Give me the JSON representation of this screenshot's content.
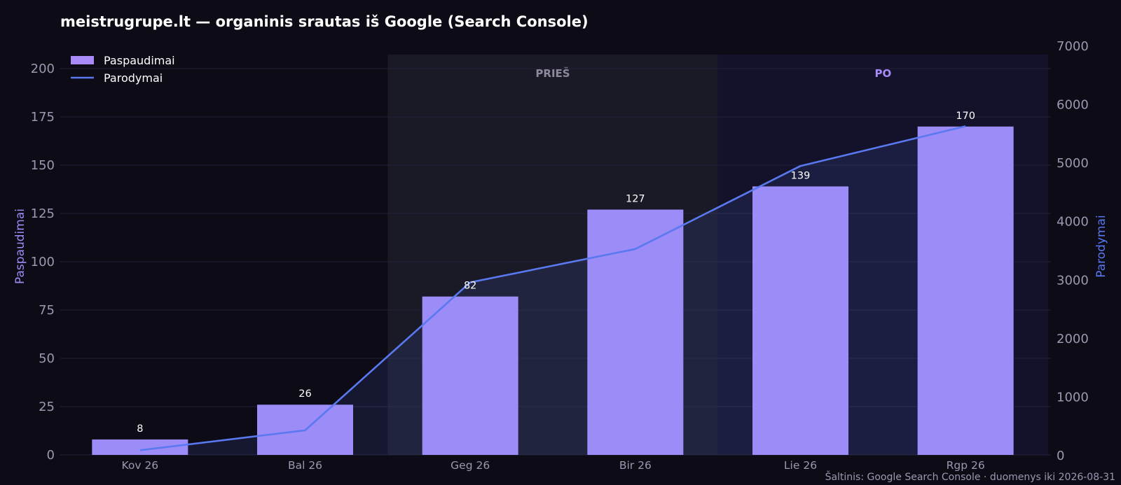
{
  "colors": {
    "background": "#0c0b16",
    "bars": "#9b8cf8",
    "bars_highlight": "#a98af9",
    "line": "#5a78f0",
    "grid": "#24233a",
    "before_region": "#1a1926",
    "after_region": "#14122a",
    "left_axis_label": "#a08af6",
    "right_axis_label": "#5a78f0",
    "region_before_label": "#8d8a9e",
    "region_after_label": "#a98af9"
  },
  "chart_data": {
    "type": "bar",
    "title": "meistrugrupe.lt — organinis srautas iš Google (Search Console)",
    "categories": [
      "Kov 26",
      "Bal 26",
      "Geg 26",
      "Bir 26",
      "Lie 26",
      "Rgp 26"
    ],
    "series": [
      {
        "name": "Paspaudimai",
        "type": "bar",
        "axis": "left",
        "values": [
          8,
          26,
          82,
          127,
          139,
          170
        ]
      },
      {
        "name": "Parodymai",
        "type": "line",
        "axis": "right",
        "values": [
          80,
          420,
          2950,
          3520,
          4940,
          5620
        ]
      }
    ],
    "ylabel": "Paspaudimai",
    "y2label": "Parodymai",
    "ylim": [
      0,
      200
    ],
    "y2lim": [
      0,
      7000
    ],
    "yticks": [
      "0",
      "25",
      "50",
      "75",
      "100",
      "125",
      "150",
      "175",
      "200"
    ],
    "y2ticks": [
      "0",
      "1000",
      "2000",
      "3000",
      "4000",
      "5000",
      "6000",
      "7000"
    ],
    "data_labels": [
      "8",
      "26",
      "82",
      "127",
      "139",
      "170"
    ],
    "regions": [
      {
        "label": "PRIEŠ",
        "from_category": "Geg 26",
        "to_category": "Bir 26"
      },
      {
        "label": "PO",
        "from_category": "Lie 26",
        "to_category": "Rgp 26"
      }
    ],
    "legend": [
      "Paspaudimai",
      "Parodymai"
    ],
    "legend_position": "top-left",
    "grid": true
  },
  "footer": {
    "source": "Šaltinis: Google Search Console · duomenys iki 2026-08-31"
  }
}
